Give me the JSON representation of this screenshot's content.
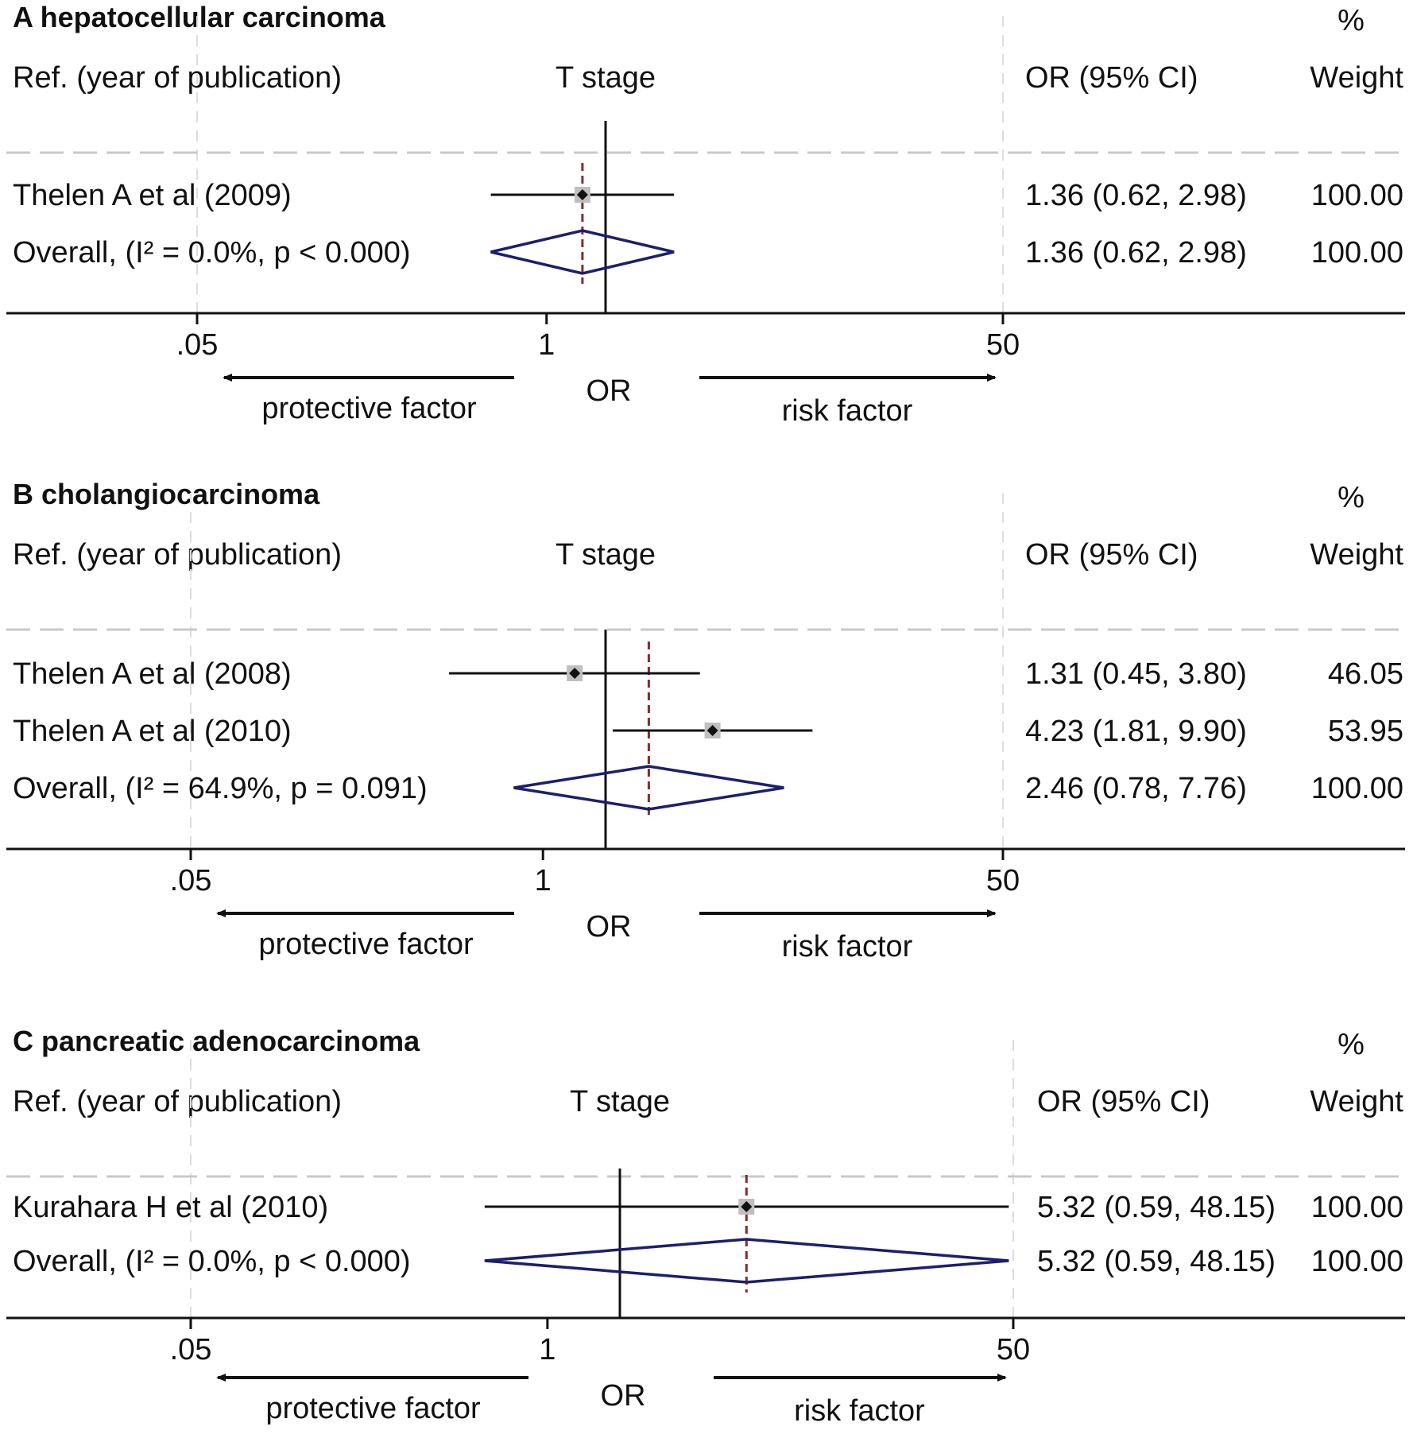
{
  "colors": {
    "ink": "#111111",
    "grid": "#dddddd",
    "marker_box": "#bfbfbf",
    "diamond": "#1b1f6e",
    "overall_line": "#8b2a2a"
  },
  "chart_data": [
    {
      "type": "forest",
      "title": "A hepatocellular carcinoma",
      "header": {
        "ref": "Ref. (year of publication)",
        "subgroup": "T stage",
        "or_ci": "OR (95% CI)",
        "pct": "%",
        "weight": "Weight"
      },
      "studies": [
        {
          "label": "Thelen A et al (2009)",
          "or": 1.36,
          "lower": 0.62,
          "upper": 2.98,
          "or_text": "1.36 (0.62, 2.98)",
          "weight_text": "100.00"
        }
      ],
      "overall": {
        "label": "Overall,  (I² = 0.0%, p < 0.000)",
        "or": 1.36,
        "lower": 0.62,
        "upper": 2.98,
        "or_text": "1.36 (0.62, 2.98)",
        "weight_text": "100.00"
      },
      "axis": {
        "ticks": [
          0.05,
          1,
          50
        ],
        "tick_labels": [
          ".05",
          "1",
          "50"
        ],
        "xlabel": "OR",
        "left_label": "protective factor",
        "right_label": "risk factor",
        "scale": "log"
      }
    },
    {
      "type": "forest",
      "title": "B cholangiocarcinoma",
      "header": {
        "ref": "Ref. (year of publication)",
        "subgroup": "T stage",
        "or_ci": "OR (95% CI)",
        "pct": "%",
        "weight": "Weight"
      },
      "studies": [
        {
          "label": "Thelen A et al (2008)",
          "or": 1.31,
          "lower": 0.45,
          "upper": 3.8,
          "or_text": "1.31 (0.45, 3.80)",
          "weight_text": "46.05"
        },
        {
          "label": "Thelen A et al (2010)",
          "or": 4.23,
          "lower": 1.81,
          "upper": 9.9,
          "or_text": "4.23 (1.81, 9.90)",
          "weight_text": "53.95"
        }
      ],
      "overall": {
        "label": "Overall, (I² = 64.9%, p = 0.091)",
        "or": 2.46,
        "lower": 0.78,
        "upper": 7.76,
        "or_text": "2.46 (0.78, 7.76)",
        "weight_text": "100.00"
      },
      "axis": {
        "ticks": [
          0.05,
          1,
          50
        ],
        "tick_labels": [
          ".05",
          "1",
          "50"
        ],
        "xlabel": "OR",
        "left_label": "protective factor",
        "right_label": "risk factor",
        "scale": "log"
      }
    },
    {
      "type": "forest",
      "title": "C pancreatic adenocarcinoma",
      "header": {
        "ref": "Ref. (year of publication)",
        "subgroup": "T stage",
        "or_ci": "OR (95% CI)",
        "pct": "%",
        "weight": "Weight"
      },
      "studies": [
        {
          "label": "Kurahara H et al (2010)",
          "or": 5.32,
          "lower": 0.59,
          "upper": 48.15,
          "or_text": "5.32 (0.59, 48.15)",
          "weight_text": "100.00"
        }
      ],
      "overall": {
        "label": "Overall,  (I² = 0.0%, p < 0.000)",
        "or": 5.32,
        "lower": 0.59,
        "upper": 48.15,
        "or_text": "5.32 (0.59, 48.15)",
        "weight_text": "100.00"
      },
      "axis": {
        "ticks": [
          0.05,
          1,
          50
        ],
        "tick_labels": [
          ".05",
          "1",
          "50"
        ],
        "xlabel": "OR",
        "left_label": "protective factor",
        "right_label": "risk factor",
        "scale": "log"
      }
    }
  ]
}
